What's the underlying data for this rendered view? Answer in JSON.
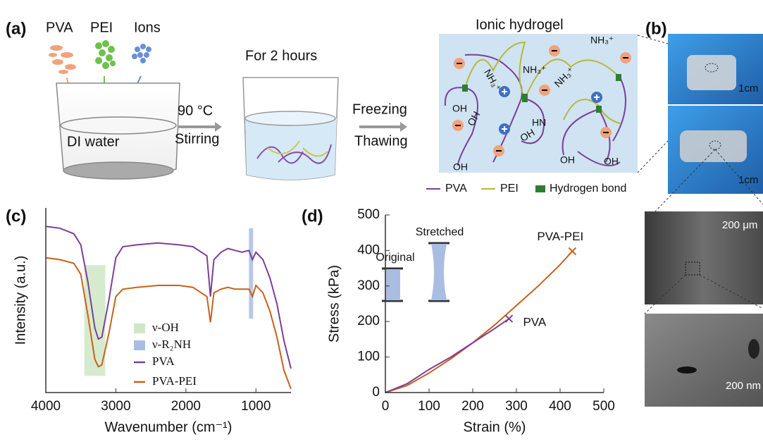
{
  "panels": [
    "(a)",
    "(b)",
    "(c)",
    "(d)"
  ],
  "schematic": {
    "components": [
      "PVA",
      "PEI",
      "Ions"
    ],
    "beaker1": "DI water",
    "step1": [
      "90 °C",
      "Stirring"
    ],
    "beaker2": "For 2 hours",
    "step2": [
      "Freezing",
      "Thawing"
    ],
    "hydrogel": {
      "title": "Ionic hydrogel",
      "labels": [
        "NH₃⁺",
        "NH₃⁺",
        "NH₃⁺",
        "NH₃⁺",
        "OH",
        "OH",
        "HN",
        "OH",
        "OH",
        "OH",
        "OH"
      ]
    },
    "legend": [
      "PVA",
      "PEI",
      "Hydrogen bond"
    ]
  },
  "photos": {
    "scale": [
      "1cm",
      "1cm"
    ],
    "sem": [
      "200 μm",
      "200 nm"
    ]
  },
  "chart_data": [
    {
      "type": "line",
      "xlabel": "Wavenumber (cm⁻¹)",
      "ylabel": "Intensity (a.u.)",
      "x": [
        4000,
        3800,
        3600,
        3500,
        3400,
        3300,
        3250,
        3200,
        3100,
        3000,
        2900,
        2700,
        2400,
        2100,
        1900,
        1700,
        1650,
        1600,
        1500,
        1400,
        1300,
        1200,
        1100,
        1050,
        1000,
        900,
        800,
        700,
        600,
        500
      ],
      "series": [
        {
          "name": "PVA",
          "color": "#7b3f99",
          "values": [
            90,
            89,
            86,
            80,
            60,
            35,
            29,
            30,
            50,
            73,
            79,
            80,
            81,
            80,
            79,
            74,
            52,
            72,
            76,
            78,
            77,
            76,
            77,
            72,
            76,
            72,
            62,
            48,
            28,
            13
          ]
        },
        {
          "name": "PVA-PEI",
          "color": "#c8611b",
          "values": [
            73,
            72,
            70,
            64,
            42,
            18,
            14,
            15,
            32,
            52,
            56,
            57,
            58,
            58,
            57,
            52,
            38,
            54,
            56,
            57,
            56,
            56,
            56,
            52,
            58,
            54,
            44,
            30,
            12,
            2
          ]
        }
      ],
      "bands": [
        {
          "name": "ν-OH",
          "color": "#cfe8c4",
          "x": [
            3450,
            3150
          ],
          "y": [
            9,
            69
          ]
        },
        {
          "name": "ν-R₂NH",
          "color": "#a9bde3",
          "x": [
            1100,
            1040
          ],
          "y": [
            40,
            89
          ]
        }
      ],
      "xlim": [
        4000,
        500
      ],
      "xticks": [
        4000,
        3000,
        2000,
        1000
      ],
      "ylim": [
        0,
        100
      ]
    },
    {
      "type": "line",
      "xlabel": "Strain (%)",
      "ylabel": "Stress (kPa)",
      "series": [
        {
          "name": "PVA-PEI",
          "color": "#c8611b",
          "marker": "x",
          "x": [
            0,
            50,
            100,
            150,
            200,
            250,
            300,
            350,
            400,
            428
          ],
          "values": [
            0,
            20,
            55,
            95,
            140,
            190,
            245,
            300,
            360,
            398
          ]
        },
        {
          "name": "PVA",
          "color": "#7b3f99",
          "marker": "x",
          "x": [
            0,
            50,
            100,
            150,
            200,
            250,
            283
          ],
          "values": [
            0,
            25,
            65,
            100,
            140,
            180,
            208
          ]
        }
      ],
      "inset_labels": [
        "Original",
        "Stretched"
      ],
      "xlim": [
        0,
        500
      ],
      "xticks": [
        0,
        100,
        200,
        300,
        400,
        500
      ],
      "ylim": [
        0,
        500
      ],
      "yticks": [
        0,
        100,
        200,
        300,
        400,
        500
      ]
    }
  ]
}
